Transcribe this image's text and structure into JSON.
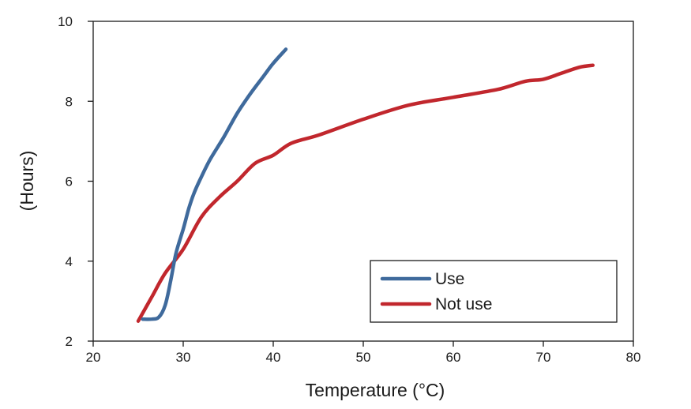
{
  "chart_data": {
    "type": "line",
    "title": "",
    "xlabel": "Temperature (°C)",
    "ylabel": "(Hours)",
    "xlim": [
      20,
      80
    ],
    "ylim": [
      2,
      10
    ],
    "x_ticks": [
      "20",
      "30",
      "40",
      "50",
      "60",
      "70",
      "80"
    ],
    "y_ticks": [
      "2",
      "4",
      "6",
      "8",
      "10"
    ],
    "grid": false,
    "legend_position": "bottom-right",
    "series": [
      {
        "name": "Use",
        "color": "#3f6a9c",
        "x": [
          25.5,
          26.5,
          27.3,
          28.0,
          28.6,
          29.2,
          30.0,
          30.6,
          31.2,
          32.0,
          33.0,
          34.5,
          36.0,
          37.5,
          39.0,
          40.0,
          41.4
        ],
        "y": [
          2.55,
          2.55,
          2.6,
          2.9,
          3.5,
          4.2,
          4.8,
          5.3,
          5.7,
          6.1,
          6.55,
          7.1,
          7.7,
          8.2,
          8.65,
          8.95,
          9.3
        ]
      },
      {
        "name": "Not use",
        "color": "#c1272d",
        "x": [
          25.0,
          26.5,
          28.0,
          30.0,
          32.0,
          34.0,
          36.0,
          38.0,
          40.0,
          42.0,
          45.0,
          50.0,
          55.0,
          60.0,
          65.0,
          68.0,
          70.0,
          72.0,
          74.0,
          75.5
        ],
        "y": [
          2.5,
          3.1,
          3.7,
          4.3,
          5.1,
          5.6,
          6.0,
          6.45,
          6.65,
          6.95,
          7.15,
          7.55,
          7.9,
          8.1,
          8.3,
          8.5,
          8.55,
          8.7,
          8.85,
          8.9
        ]
      }
    ]
  }
}
